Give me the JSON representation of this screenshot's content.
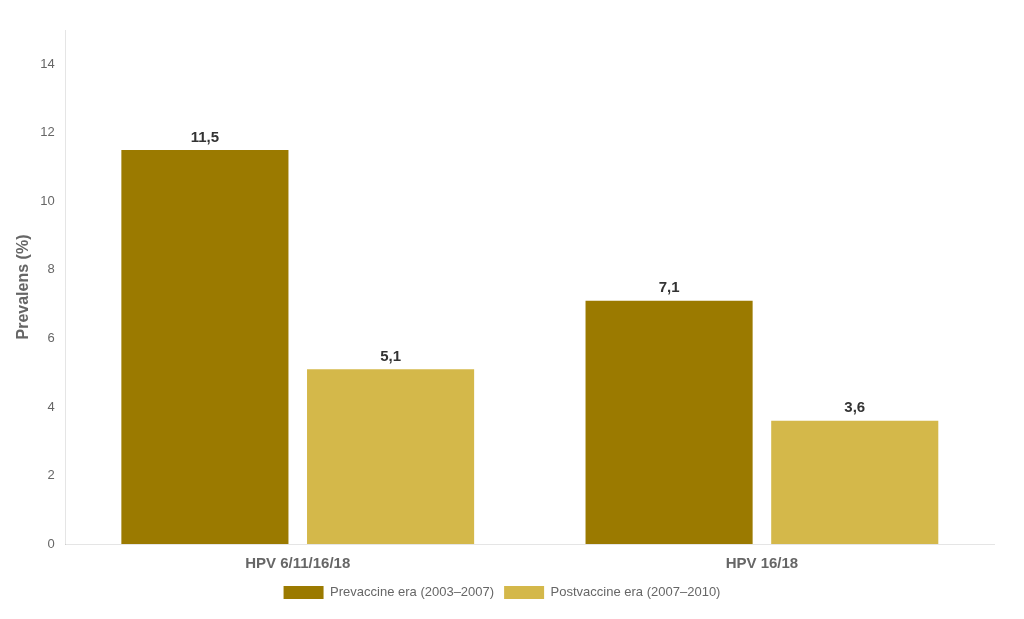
{
  "chart_data": {
    "type": "bar",
    "categories": [
      "HPV 6/11/16/18",
      "HPV 16/18"
    ],
    "series": [
      {
        "name": "Prevaccine era (2003–2007)",
        "color": "#9B7A00",
        "values": [
          11.5,
          7.1
        ],
        "value_labels": [
          "11,5",
          "7,1"
        ]
      },
      {
        "name": "Postvaccine era (2007–2010)",
        "color": "#D4B84A",
        "values": [
          5.1,
          3.6
        ],
        "value_labels": [
          "5,1",
          "3,6"
        ]
      }
    ],
    "ylabel": "Prevalens (%)",
    "ylim": [
      0,
      15
    ],
    "yticks": [
      0,
      2,
      4,
      6,
      8,
      10,
      12,
      14
    ],
    "grid": false,
    "legend": "bottom",
    "data_labels": true
  }
}
